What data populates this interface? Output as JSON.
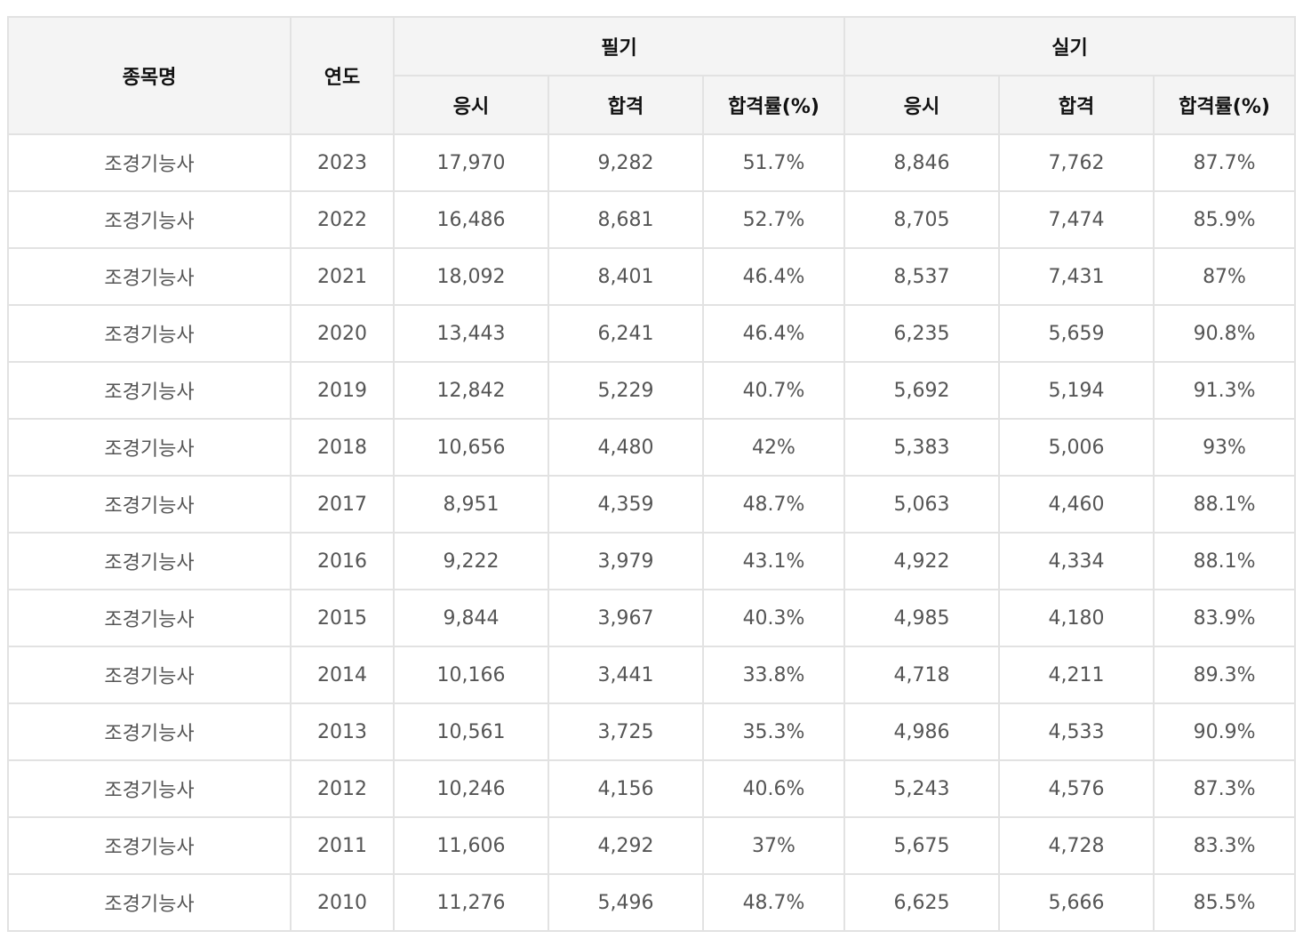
{
  "table": {
    "headers": {
      "item_name": "종목명",
      "year": "연도",
      "written": "필기",
      "practical": "실기",
      "sub": [
        "응시",
        "합격",
        "합격률(%)",
        "응시",
        "합격",
        "합격률(%)"
      ]
    },
    "rows": [
      [
        "조경기능사",
        "2023",
        "17,970",
        "9,282",
        "51.7%",
        "8,846",
        "7,762",
        "87.7%"
      ],
      [
        "조경기능사",
        "2022",
        "16,486",
        "8,681",
        "52.7%",
        "8,705",
        "7,474",
        "85.9%"
      ],
      [
        "조경기능사",
        "2021",
        "18,092",
        "8,401",
        "46.4%",
        "8,537",
        "7,431",
        "87%"
      ],
      [
        "조경기능사",
        "2020",
        "13,443",
        "6,241",
        "46.4%",
        "6,235",
        "5,659",
        "90.8%"
      ],
      [
        "조경기능사",
        "2019",
        "12,842",
        "5,229",
        "40.7%",
        "5,692",
        "5,194",
        "91.3%"
      ],
      [
        "조경기능사",
        "2018",
        "10,656",
        "4,480",
        "42%",
        "5,383",
        "5,006",
        "93%"
      ],
      [
        "조경기능사",
        "2017",
        "8,951",
        "4,359",
        "48.7%",
        "5,063",
        "4,460",
        "88.1%"
      ],
      [
        "조경기능사",
        "2016",
        "9,222",
        "3,979",
        "43.1%",
        "4,922",
        "4,334",
        "88.1%"
      ],
      [
        "조경기능사",
        "2015",
        "9,844",
        "3,967",
        "40.3%",
        "4,985",
        "4,180",
        "83.9%"
      ],
      [
        "조경기능사",
        "2014",
        "10,166",
        "3,441",
        "33.8%",
        "4,718",
        "4,211",
        "89.3%"
      ],
      [
        "조경기능사",
        "2013",
        "10,561",
        "3,725",
        "35.3%",
        "4,986",
        "4,533",
        "90.9%"
      ],
      [
        "조경기능사",
        "2012",
        "10,246",
        "4,156",
        "40.6%",
        "5,243",
        "4,576",
        "87.3%"
      ],
      [
        "조경기능사",
        "2011",
        "11,606",
        "4,292",
        "37%",
        "5,675",
        "4,728",
        "83.3%"
      ],
      [
        "조경기능사",
        "2010",
        "11,276",
        "5,496",
        "48.7%",
        "6,625",
        "5,666",
        "85.5%"
      ]
    ]
  }
}
